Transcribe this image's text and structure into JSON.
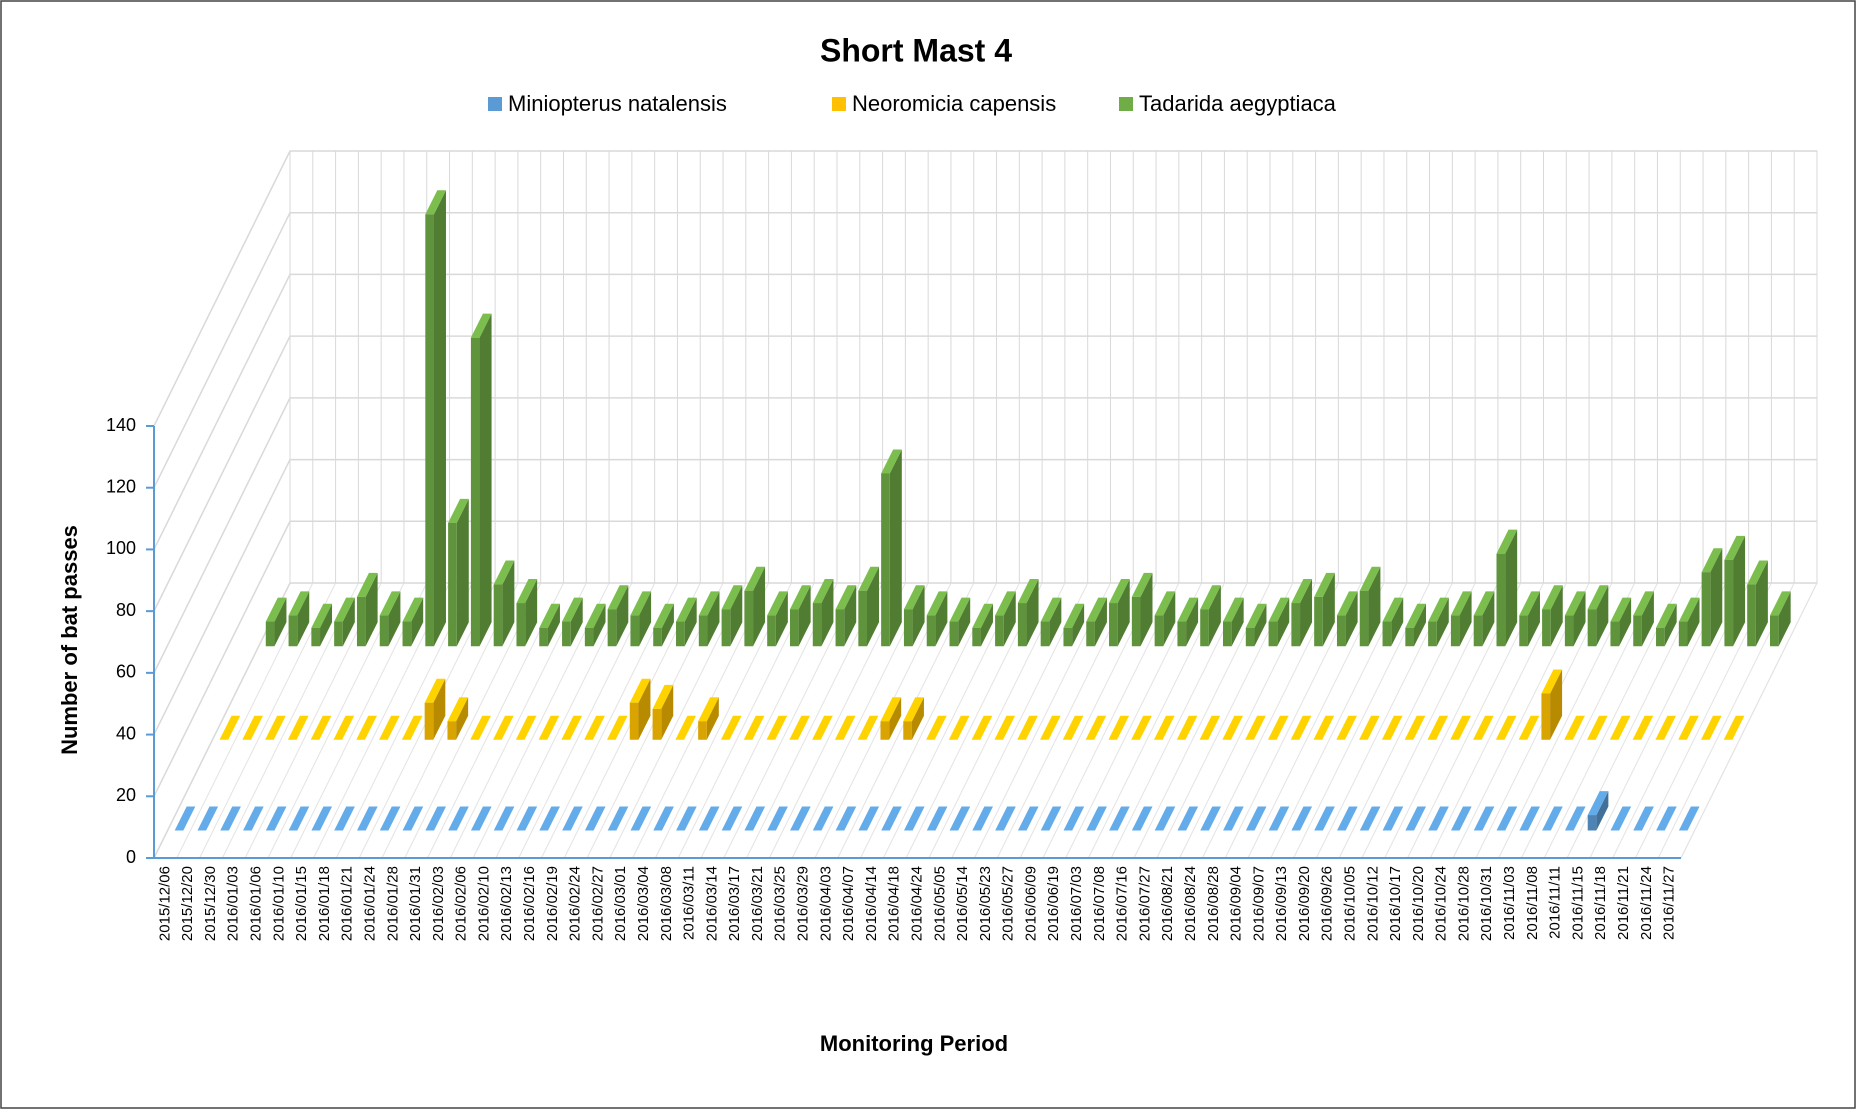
{
  "chart_data": {
    "type": "bar3d",
    "title": "Short Mast 4",
    "x_label": "Monitoring Period",
    "y_label": "Number of bat passes",
    "categories": [
      "2015/12/06",
      "2015/12/20",
      "2015/12/30",
      "2016/01/03",
      "2016/01/06",
      "2016/01/10",
      "2016/01/15",
      "2016/01/18",
      "2016/01/21",
      "2016/01/24",
      "2016/01/28",
      "2016/01/31",
      "2016/02/03",
      "2016/02/06",
      "2016/02/10",
      "2016/02/13",
      "2016/02/16",
      "2016/02/19",
      "2016/02/24",
      "2016/02/27",
      "2016/03/01",
      "2016/03/04",
      "2016/03/08",
      "2016/03/11",
      "2016/03/14",
      "2016/03/17",
      "2016/03/21",
      "2016/03/25",
      "2016/03/29",
      "2016/04/03",
      "2016/04/07",
      "2016/04/14",
      "2016/04/18",
      "2016/04/24",
      "2016/05/05",
      "2016/05/14",
      "2016/05/23",
      "2016/05/27",
      "2016/06/09",
      "2016/06/19",
      "2016/07/03",
      "2016/07/08",
      "2016/07/16",
      "2016/07/27",
      "2016/08/21",
      "2016/08/24",
      "2016/08/28",
      "2016/09/04",
      "2016/09/07",
      "2016/09/13",
      "2016/09/20",
      "2016/09/26",
      "2016/10/05",
      "2016/10/12",
      "2016/10/17",
      "2016/10/20",
      "2016/10/24",
      "2016/10/28",
      "2016/10/31",
      "2016/11/03",
      "2016/11/08",
      "2016/11/11",
      "2016/11/15",
      "2016/11/18",
      "2016/11/21",
      "2016/11/24",
      "2016/11/27"
    ],
    "series": [
      {
        "name": "Miniopterus natalensis",
        "color": "#5b9bd5",
        "values": [
          0,
          0,
          0,
          0,
          0,
          0,
          0,
          0,
          0,
          0,
          0,
          0,
          0,
          0,
          0,
          0,
          0,
          0,
          0,
          0,
          0,
          0,
          0,
          0,
          0,
          0,
          0,
          0,
          0,
          0,
          0,
          0,
          0,
          0,
          0,
          0,
          0,
          0,
          0,
          0,
          0,
          0,
          0,
          0,
          0,
          0,
          0,
          0,
          0,
          0,
          0,
          0,
          0,
          0,
          0,
          0,
          0,
          0,
          0,
          0,
          0,
          0,
          5,
          0,
          0,
          0,
          0
        ]
      },
      {
        "name": "Neoromicia capensis",
        "color": "#ffc000",
        "values": [
          0,
          0,
          0,
          0,
          0,
          0,
          0,
          0,
          0,
          12,
          6,
          0,
          0,
          0,
          0,
          0,
          0,
          0,
          12,
          10,
          0,
          6,
          0,
          0,
          0,
          0,
          0,
          0,
          0,
          6,
          6,
          0,
          0,
          0,
          0,
          0,
          0,
          0,
          0,
          0,
          0,
          0,
          0,
          0,
          0,
          0,
          0,
          0,
          0,
          0,
          0,
          0,
          0,
          0,
          0,
          0,
          0,
          0,
          15,
          0,
          0,
          0,
          0,
          0,
          0,
          0,
          0
        ]
      },
      {
        "name": "Tadarida aegyptiaca",
        "color": "#70ad47",
        "values": [
          8,
          10,
          6,
          8,
          16,
          10,
          8,
          140,
          40,
          100,
          20,
          14,
          6,
          8,
          6,
          12,
          10,
          6,
          8,
          10,
          12,
          18,
          10,
          12,
          14,
          12,
          18,
          56,
          12,
          10,
          8,
          6,
          10,
          14,
          8,
          6,
          8,
          14,
          16,
          10,
          8,
          12,
          8,
          6,
          8,
          14,
          16,
          10,
          18,
          8,
          6,
          8,
          10,
          10,
          30,
          10,
          12,
          10,
          12,
          8,
          10,
          6,
          8,
          24,
          28,
          20,
          10
        ]
      }
    ],
    "ylim": [
      0,
      140
    ],
    "yticks": [
      0,
      20,
      40,
      60,
      80,
      100,
      120,
      140
    ],
    "grid": true
  }
}
